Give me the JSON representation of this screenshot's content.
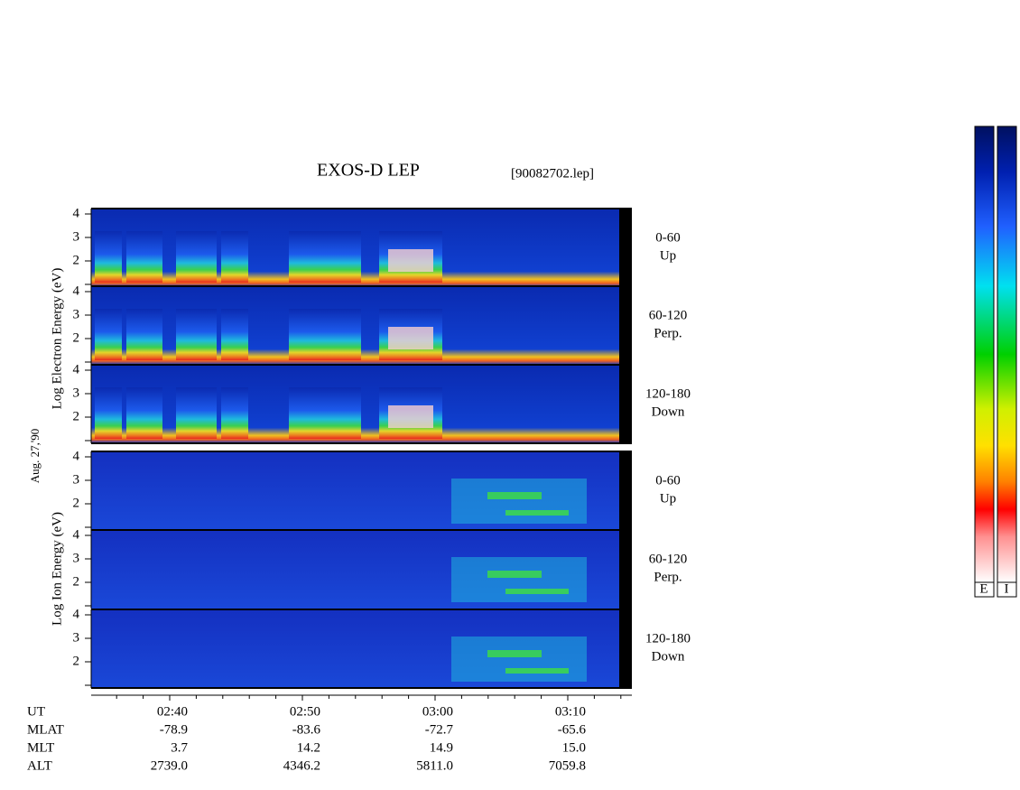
{
  "header": {
    "title": "EXOS-D LEP",
    "file": "[90082702.lep]"
  },
  "electron_axis_label": "Log Electron Energy (eV)",
  "ion_axis_label": "Log Ion Energy (eV)",
  "date": "Aug. 27,'90",
  "energy_ticks": [
    4,
    3,
    2
  ],
  "panels": [
    {
      "range": "0-60",
      "dir": "Up"
    },
    {
      "range": "60-120",
      "dir": "Perp."
    },
    {
      "range": "120-180",
      "dir": "Down"
    },
    {
      "range": "0-60",
      "dir": "Up"
    },
    {
      "range": "60-120",
      "dir": "Perp."
    },
    {
      "range": "120-180",
      "dir": "Down"
    }
  ],
  "colorbar": {
    "labels": [
      "E",
      "I"
    ]
  },
  "ephemeris": [
    {
      "name": "UT",
      "values": [
        "02:40",
        "02:50",
        "03:00",
        "03:10"
      ]
    },
    {
      "name": "MLAT",
      "values": [
        "-78.9",
        "-83.6",
        "-72.7",
        "-65.6"
      ]
    },
    {
      "name": "MLT",
      "values": [
        "3.7",
        "14.2",
        "14.9",
        "15.0"
      ]
    },
    {
      "name": "ALT",
      "values": [
        "2739.0",
        "4346.2",
        "5811.0",
        "7059.8"
      ]
    }
  ]
}
